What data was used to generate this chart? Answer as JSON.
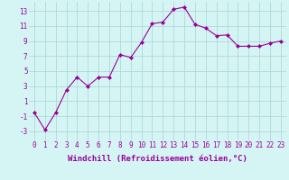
{
  "x": [
    0,
    1,
    2,
    3,
    4,
    5,
    6,
    7,
    8,
    9,
    10,
    11,
    12,
    13,
    14,
    15,
    16,
    17,
    18,
    19,
    20,
    21,
    22,
    23
  ],
  "y": [
    -0.5,
    -2.8,
    -0.5,
    2.5,
    4.2,
    3.0,
    4.2,
    4.2,
    7.2,
    6.8,
    8.8,
    11.3,
    11.5,
    13.2,
    13.5,
    11.2,
    10.7,
    9.7,
    9.8,
    8.3,
    8.3,
    8.3,
    8.7,
    9.0
  ],
  "line_color": "#990099",
  "marker": "D",
  "markersize": 2.0,
  "linewidth": 0.8,
  "bg_color": "#d5f5f5",
  "grid_color": "#b0d8d8",
  "xlabel": "Windchill (Refroidissement éolien,°C)",
  "xlabel_fontsize": 6.5,
  "tick_fontsize": 5.5,
  "yticks": [
    -3,
    -1,
    1,
    3,
    5,
    7,
    9,
    11,
    13
  ],
  "ylim": [
    -4.2,
    14.2
  ],
  "xlim": [
    -0.5,
    23.5
  ]
}
